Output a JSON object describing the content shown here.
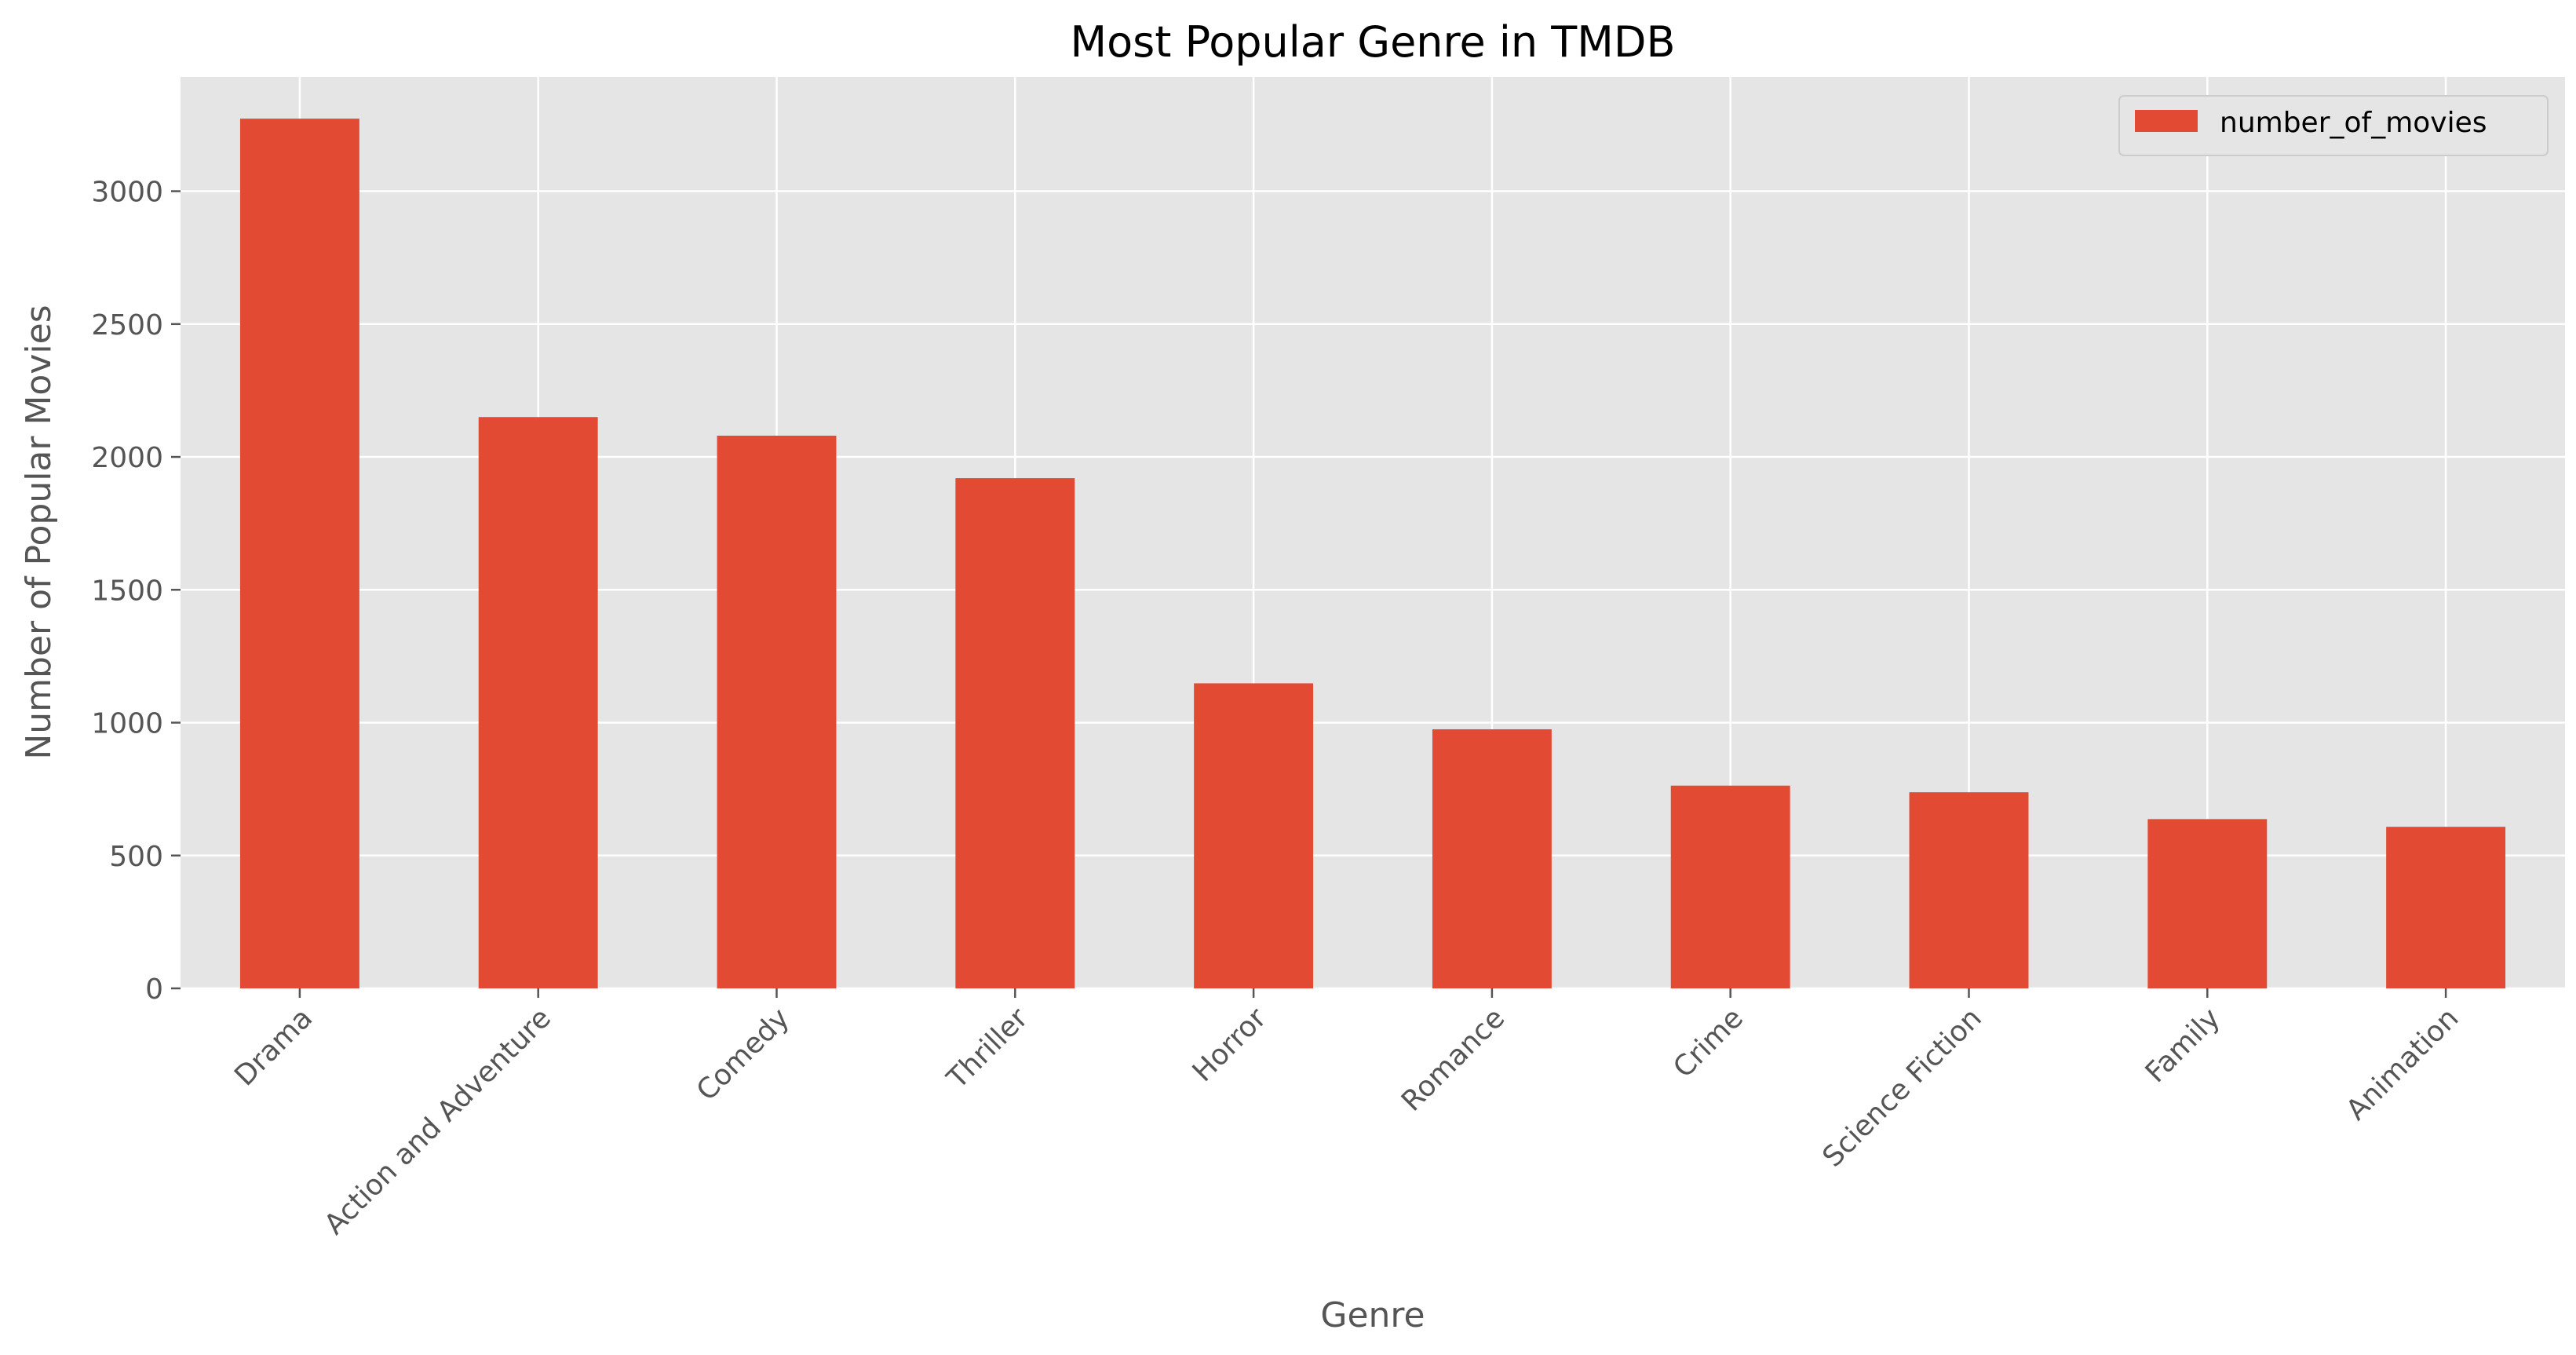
{
  "colors": {
    "bar": "#E24A33",
    "plot_bg": "#E5E5E5",
    "grid": "#FFFFFF",
    "tick_text": "#555555",
    "legend_bg": "#E5E5E5",
    "legend_border": "#CCCCCC"
  },
  "chart_data": {
    "type": "bar",
    "title": "Most Popular Genre in TMDB",
    "xlabel": "Genre",
    "ylabel": "Number of Popular Movies",
    "categories": [
      "Drama",
      "Action and Adventure",
      "Comedy",
      "Thriller",
      "Horror",
      "Romance",
      "Crime",
      "Science Fiction",
      "Family",
      "Animation"
    ],
    "series": [
      {
        "name": "number_of_movies",
        "values": [
          3273,
          2150,
          2080,
          1920,
          1148,
          975,
          763,
          738,
          637,
          608
        ]
      }
    ],
    "ylim": [
      0,
      3430
    ],
    "yticks": [
      0,
      500,
      1000,
      1500,
      2000,
      2500,
      3000
    ],
    "ytick_labels": [
      "0",
      "500",
      "1000",
      "1500",
      "2000",
      "2500",
      "3000"
    ],
    "grid": true,
    "legend_position": "top-right",
    "xtick_rotation": "45"
  }
}
